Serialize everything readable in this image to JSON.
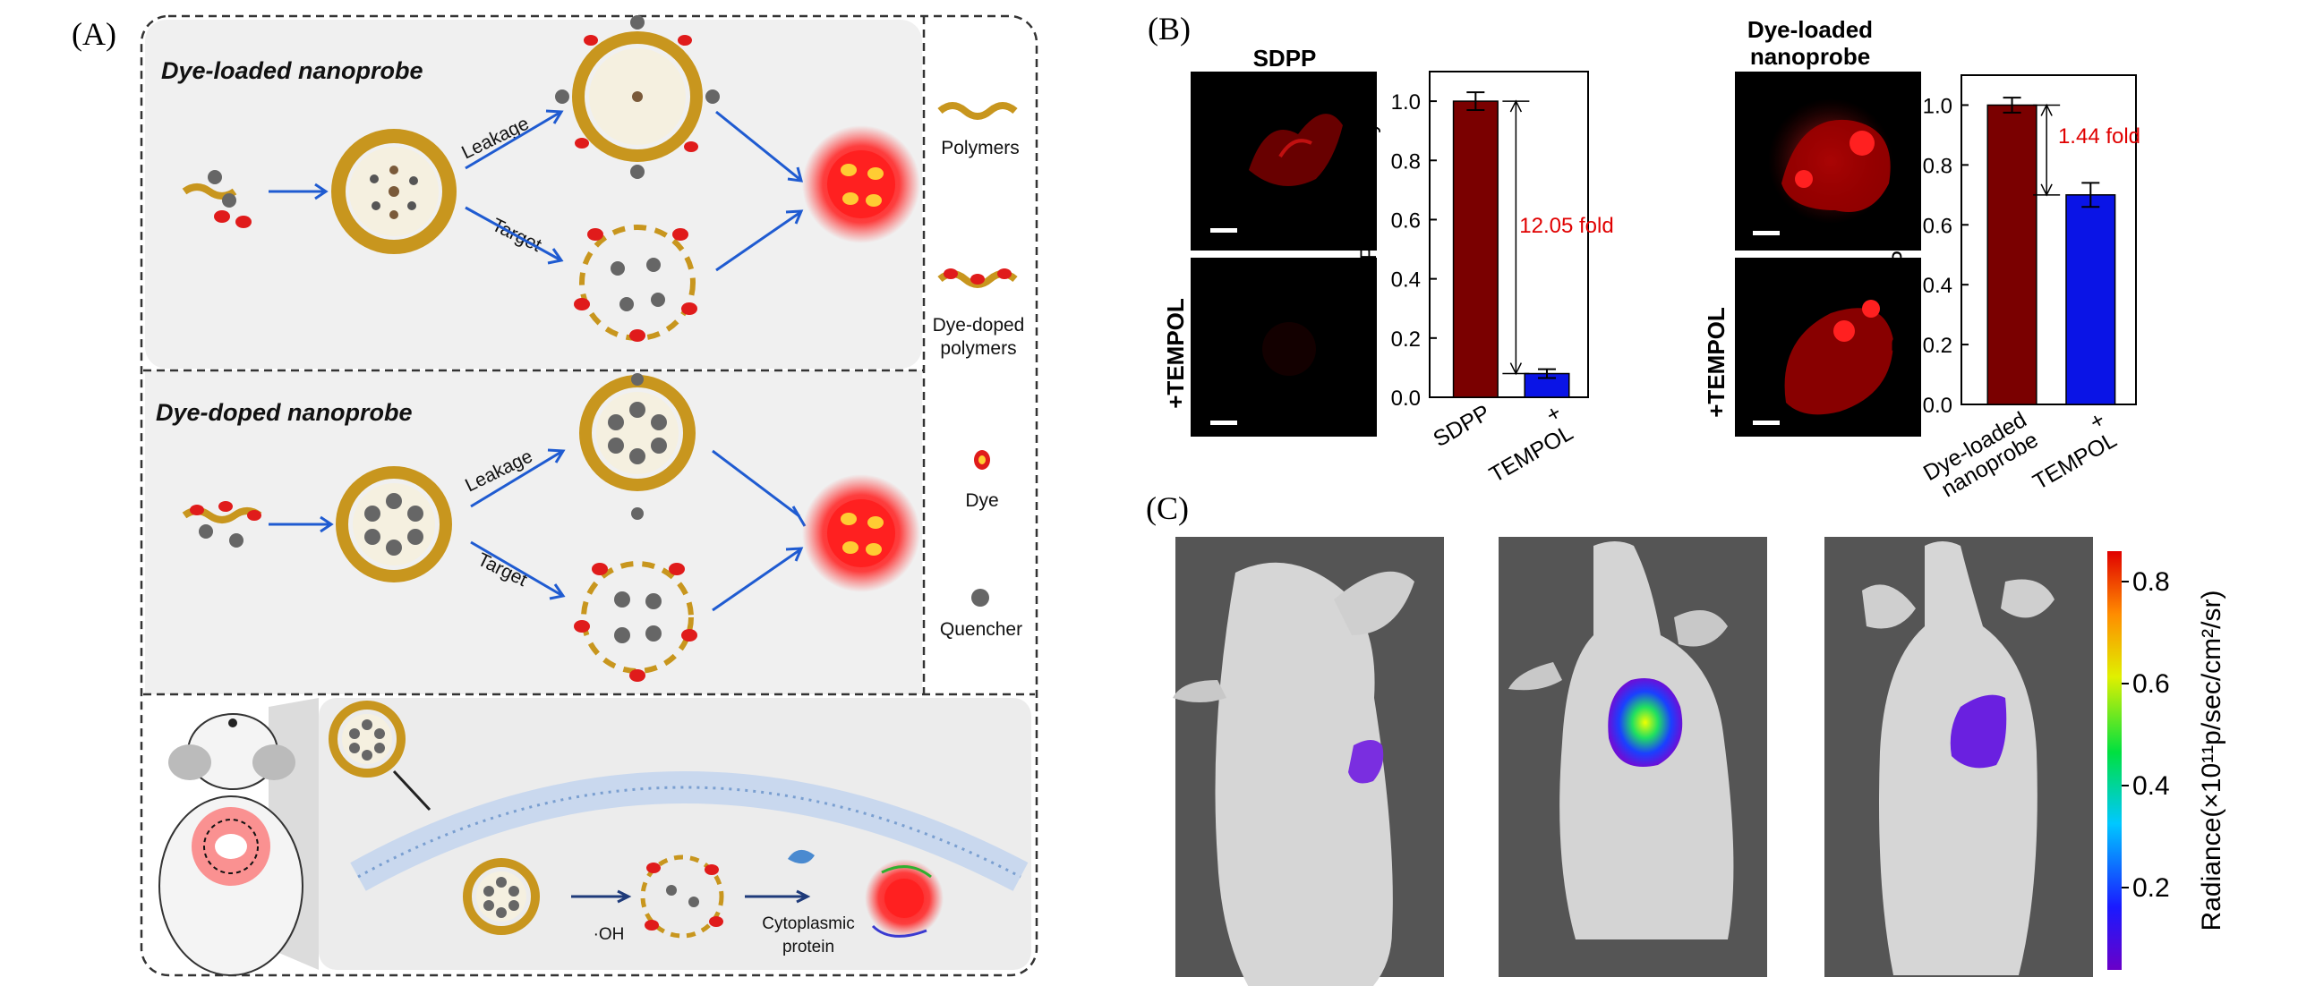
{
  "panels": {
    "a": {
      "label": "(A)",
      "loaded_title": "Dye-loaded nanoprobe",
      "doped_title": "Dye-doped nanoprobe",
      "leakage": "Leakage",
      "target": "Target",
      "legend": {
        "polymers": "Polymers",
        "dye_doped_1": "Dye-doped",
        "dye_doped_2": "polymers",
        "dye": "Dye",
        "quencher": "Quencher"
      },
      "oh": "·OH",
      "cyto_1": "Cytoplasmic",
      "cyto_2": "protein"
    },
    "b": {
      "label": "(B)",
      "sdpp": "SDPP",
      "tempol": "+TEMPOL",
      "loaded_1": "Dye-loaded",
      "loaded_2": "nanoprobe"
    },
    "c": {
      "label": "(C)",
      "colorbar_label": "Radiance(×10¹¹p/sec/cm²/sr)",
      "colorbar_ticks": [
        "0.8",
        "0.6",
        "0.4",
        "0.2"
      ]
    }
  },
  "chart_data": [
    {
      "type": "bar",
      "categories": [
        "SDPP",
        "+ TEMPOL"
      ],
      "values": [
        1.0,
        0.08
      ],
      "errors": [
        0.03,
        0.015
      ],
      "ylabel": "Relative Pixel Intensity",
      "ylim": [
        0,
        1.1
      ],
      "yticks": [
        "0.0",
        "0.2",
        "0.4",
        "0.6",
        "0.8",
        "1.0"
      ],
      "annotation": "12.05 fold",
      "colors": [
        "#7a0000",
        "#0a14e6"
      ]
    },
    {
      "type": "bar",
      "categories": [
        "Dye-loaded nanoprobe",
        "+ TEMPOL"
      ],
      "values": [
        1.0,
        0.7
      ],
      "errors": [
        0.025,
        0.04
      ],
      "ylabel": "Relative Pixel Intensity",
      "ylim": [
        0,
        1.1
      ],
      "yticks": [
        "0.0",
        "0.2",
        "0.4",
        "0.6",
        "0.8",
        "1.0"
      ],
      "annotation": "1.44 fold",
      "colors": [
        "#7a0000",
        "#0a14e6"
      ]
    }
  ],
  "colors": {
    "polymer": "#c8961e",
    "dye": "#e01b1b",
    "quencher": "#666666",
    "arrow": "#1f5bd1",
    "annotation": "#e00000"
  }
}
